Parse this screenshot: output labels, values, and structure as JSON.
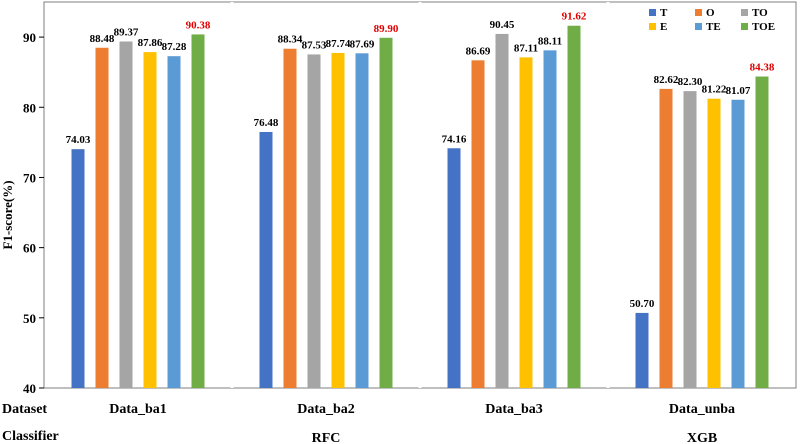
{
  "chart_data": {
    "type": "bar",
    "title": "",
    "ylabel": "F1-score(%)",
    "ylim": [
      40,
      95
    ],
    "yticks": [
      40,
      50,
      60,
      70,
      80,
      90
    ],
    "grid": false,
    "legend_position": "top-right",
    "row_labels": {
      "dataset": "Dataset",
      "classifier": "Classifier"
    },
    "categories": [
      "Data_ba1",
      "Data_ba2",
      "Data_ba3",
      "Data_unba"
    ],
    "classifier_labels": [
      "",
      "RFC",
      "",
      "XGB"
    ],
    "best_label_color": "#e00000",
    "series": [
      {
        "name": "T",
        "color": "#4472c4",
        "values": [
          74.03,
          76.48,
          74.16,
          50.7
        ]
      },
      {
        "name": "O",
        "color": "#ed7d31",
        "values": [
          88.48,
          88.34,
          86.69,
          82.62
        ]
      },
      {
        "name": "TO",
        "color": "#a5a5a5",
        "values": [
          89.37,
          87.53,
          90.45,
          82.3
        ]
      },
      {
        "name": "E",
        "color": "#ffc000",
        "values": [
          87.86,
          87.74,
          87.11,
          81.22
        ]
      },
      {
        "name": "TE",
        "color": "#5b9bd5",
        "values": [
          87.28,
          87.69,
          88.11,
          81.07
        ]
      },
      {
        "name": "TOE",
        "color": "#70ad47",
        "values": [
          90.38,
          89.9,
          91.62,
          84.38
        ]
      }
    ],
    "data_labels": [
      [
        "74.03",
        "88.48",
        "89.37",
        "87.86",
        "87.28",
        "90.38"
      ],
      [
        "76.48",
        "88.34",
        "87.53",
        "87.74",
        "87.69",
        "89.90"
      ],
      [
        "74.16",
        "86.69",
        "90.45",
        "87.11",
        "88.11",
        "91.62"
      ],
      [
        "50.70",
        "82.62",
        "82.30",
        "81.22",
        "81.07",
        "84.38"
      ]
    ]
  }
}
